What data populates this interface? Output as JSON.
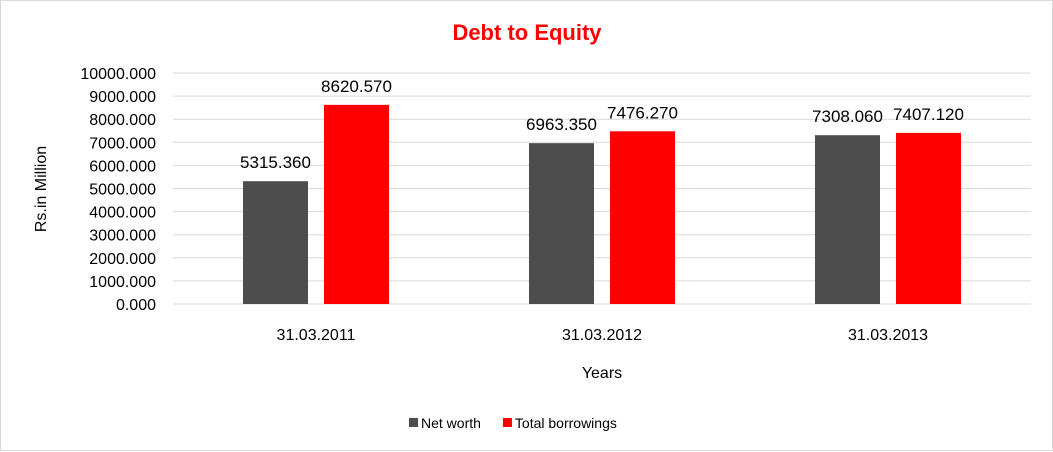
{
  "chart_data": {
    "type": "bar",
    "title": "Debt to Equity",
    "xlabel": "Years",
    "ylabel": "Rs.in Million",
    "categories": [
      "31.03.2011",
      "31.03.2012",
      "31.03.2013"
    ],
    "series": [
      {
        "name": "Net worth",
        "color": "#4d4d4d",
        "values": [
          5315.36,
          6963.35,
          7308.06
        ],
        "labels": [
          "5315.360",
          "6963.350",
          "7308.060"
        ]
      },
      {
        "name": "Total borrowings",
        "color": "#ff0000",
        "values": [
          8620.57,
          7476.27,
          7407.12
        ],
        "labels": [
          "8620.570",
          "7476.270",
          "7407.120"
        ]
      }
    ],
    "ylim": [
      0,
      10000
    ],
    "yticks": [
      0,
      1000,
      2000,
      3000,
      4000,
      5000,
      6000,
      7000,
      8000,
      9000,
      10000
    ],
    "ytick_labels": [
      "0.000",
      "1000.000",
      "2000.000",
      "3000.000",
      "4000.000",
      "5000.000",
      "6000.000",
      "7000.000",
      "8000.000",
      "9000.000",
      "10000.000"
    ],
    "grid": true,
    "legend": "bottom",
    "title_color": "#ff0000",
    "grid_color": "#d9d9d9"
  }
}
